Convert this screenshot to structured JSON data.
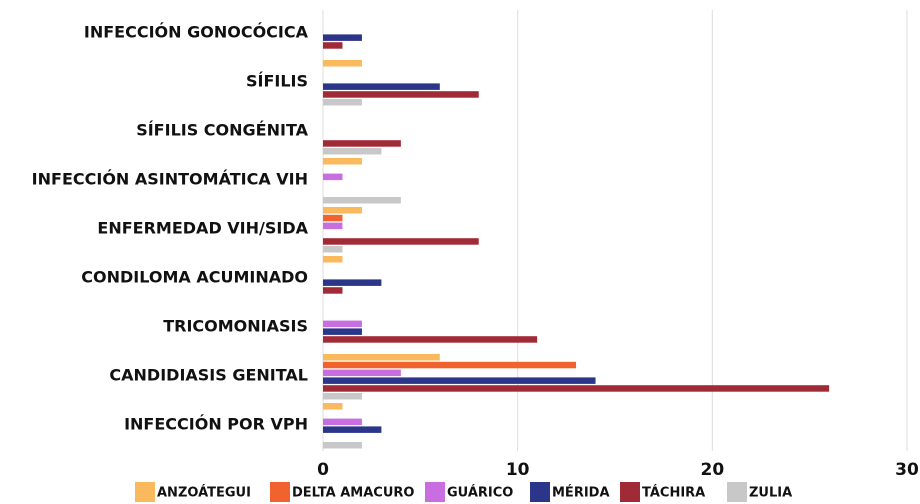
{
  "chart_data": {
    "type": "bar",
    "orientation": "horizontal",
    "categories": [
      "INFECCIÓN GONOCÓCICA",
      "SÍFILIS",
      "SÍFILIS CONGÉNITA",
      "INFECCIÓN ASINTOMÁTICA VIH",
      "ENFERMEDAD VIH/SIDA",
      "CONDILOMA ACUMINADO",
      "TRICOMONIASIS",
      "CANDIDIASIS GENITAL",
      "INFECCIÓN POR VPH"
    ],
    "series": [
      {
        "name": "ANZOÁTEGUI",
        "color": "#f9b95c",
        "values": [
          null,
          2,
          null,
          2,
          2,
          1,
          null,
          6,
          1
        ]
      },
      {
        "name": "DELTA AMACURO",
        "color": "#f0622e",
        "values": [
          null,
          null,
          null,
          null,
          1,
          null,
          null,
          13,
          null
        ]
      },
      {
        "name": "GUÁRICO",
        "color": "#c86ee0",
        "values": [
          null,
          null,
          null,
          1,
          1,
          null,
          2,
          4,
          2
        ]
      },
      {
        "name": "MÉRIDA",
        "color": "#2b3589",
        "values": [
          2,
          6,
          null,
          null,
          null,
          3,
          2,
          14,
          3
        ]
      },
      {
        "name": "TÁCHIRA",
        "color": "#a12a37",
        "values": [
          1,
          8,
          4,
          null,
          8,
          1,
          11,
          26,
          null
        ]
      },
      {
        "name": "ZULIA",
        "color": "#c8c8c8",
        "values": [
          null,
          2,
          3,
          4,
          1,
          null,
          null,
          2,
          2
        ]
      }
    ],
    "xlim": [
      0,
      30
    ],
    "xticks": [
      0,
      10,
      20,
      30
    ],
    "grid": true,
    "legend": "bottom"
  }
}
